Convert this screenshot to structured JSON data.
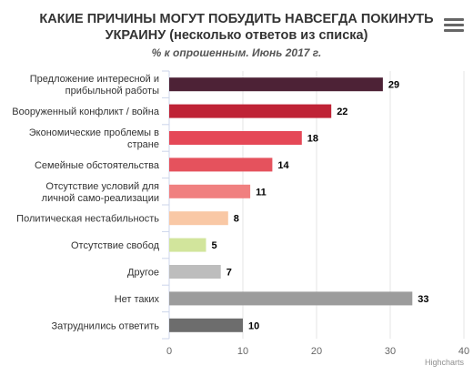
{
  "title_line1": "КАКИЕ ПРИЧИНЫ МОГУТ ПОБУДИТЬ НАВСЕГДА ПОКИНУТЬ",
  "title_line2": "УКРАИНУ (несколько ответов из списка)",
  "subtitle": "% к опрошенным. Июнь 2017 г.",
  "credits": "Highcharts",
  "menu_icon": "hamburger-menu-icon",
  "chart_data": {
    "type": "bar",
    "orientation": "horizontal",
    "title": "КАКИЕ ПРИЧИНЫ МОГУТ ПОБУДИТЬ НАВСЕГДА ПОКИНУТЬ УКРАИНУ (несколько ответов из списка)",
    "subtitle": "% к опрошенным. Июнь 2017 г.",
    "xlim": [
      0,
      40
    ],
    "ticks": [
      0,
      10,
      20,
      30,
      40
    ],
    "grid": true,
    "legend": "none",
    "categories": [
      [
        "Предложение интересной и",
        "прибыльной работы"
      ],
      [
        "Вооруженный конфликт / война"
      ],
      [
        "Экономические проблемы в",
        "стране"
      ],
      [
        "Семейные обстоятельства"
      ],
      [
        "Отсутствие условий для",
        "личной само-реализации"
      ],
      [
        "Политическая нестабильность"
      ],
      [
        "Отсутствие свобод"
      ],
      [
        "Другое"
      ],
      [
        "Нет таких"
      ],
      [
        "Затруднились ответить"
      ]
    ],
    "values": [
      29,
      22,
      18,
      14,
      11,
      8,
      5,
      7,
      33,
      10
    ],
    "colors": [
      "#4d2236",
      "#bf2336",
      "#e54857",
      "#e5525d",
      "#f08080",
      "#f9c8a5",
      "#d2e59c",
      "#bdbdbd",
      "#9c9c9c",
      "#6d6d6d"
    ]
  }
}
